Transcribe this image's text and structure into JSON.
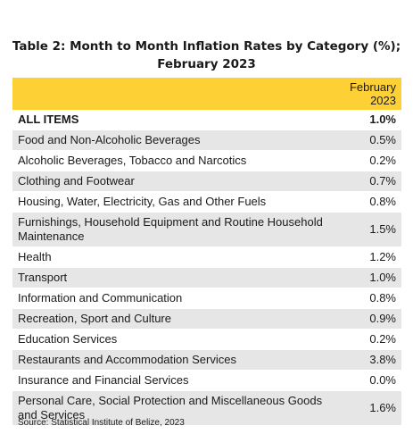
{
  "title_line1": "Table 2: Month to Month Inflation Rates by Category (%);",
  "title_line2": "February 2023",
  "header": {
    "col_line1": "February",
    "col_line2": "2023"
  },
  "rows": [
    {
      "label": "ALL ITEMS",
      "value": "1.0%"
    },
    {
      "label": "Food and Non-Alcoholic Beverages",
      "value": "0.5%"
    },
    {
      "label": "Alcoholic Beverages, Tobacco and Narcotics",
      "value": "0.2%"
    },
    {
      "label": "Clothing and Footwear",
      "value": "0.7%"
    },
    {
      "label": "Housing, Water, Electricity, Gas and Other Fuels",
      "value": "0.8%"
    },
    {
      "label": "Furnishings, Household Equipment and Routine Household Maintenance",
      "value": "1.5%"
    },
    {
      "label": "Health",
      "value": "1.2%"
    },
    {
      "label": "Transport",
      "value": "1.0%"
    },
    {
      "label": "Information and Communication",
      "value": "0.8%"
    },
    {
      "label": "Recreation, Sport and Culture",
      "value": "0.9%"
    },
    {
      "label": "Education Services",
      "value": "0.2%"
    },
    {
      "label": "Restaurants and Accommodation Services",
      "value": "3.8%"
    },
    {
      "label": "Insurance and Financial Services",
      "value": "0.0%"
    },
    {
      "label": "Personal Care, Social Protection and Miscellaneous Goods and Services",
      "value": "1.6%"
    }
  ],
  "source": "Source: Statistical Institute of Belize, 2023",
  "colors": {
    "header": "#fdd136",
    "stripe": "#e6e6e6"
  }
}
